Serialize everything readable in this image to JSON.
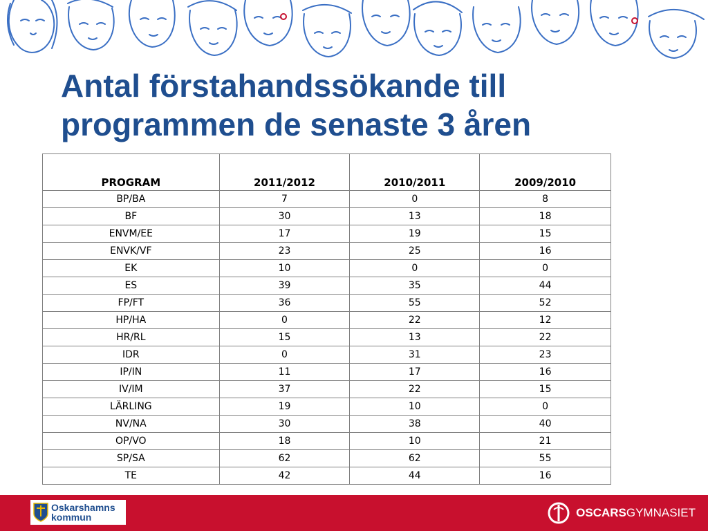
{
  "slide": {
    "title_line1": "Antal förstahandssökande till",
    "title_line2": "programmen de senaste 3 åren"
  },
  "table": {
    "headers": [
      "PROGRAM",
      "2011/2012",
      "2010/2011",
      "2009/2010"
    ],
    "rows": [
      [
        "BP/BA",
        "7",
        "0",
        "8"
      ],
      [
        "BF",
        "30",
        "13",
        "18"
      ],
      [
        "ENVM/EE",
        "17",
        "19",
        "15"
      ],
      [
        "ENVK/VF",
        "23",
        "25",
        "16"
      ],
      [
        "EK",
        "10",
        "0",
        "0"
      ],
      [
        "ES",
        "39",
        "35",
        "44"
      ],
      [
        "FP/FT",
        "36",
        "55",
        "52"
      ],
      [
        "HP/HA",
        "0",
        "22",
        "12"
      ],
      [
        "HR/RL",
        "15",
        "13",
        "22"
      ],
      [
        "IDR",
        "0",
        "31",
        "23"
      ],
      [
        "IP/IN",
        "11",
        "17",
        "16"
      ],
      [
        "IV/IM",
        "37",
        "22",
        "15"
      ],
      [
        "LÄRLING",
        "19",
        "10",
        "0"
      ],
      [
        "NV/NA",
        "30",
        "38",
        "40"
      ],
      [
        "OP/VO",
        "18",
        "10",
        "21"
      ],
      [
        "SP/SA",
        "62",
        "62",
        "55"
      ],
      [
        "TE",
        "42",
        "44",
        "16"
      ]
    ]
  },
  "footer": {
    "kommun_line1": "Oskarshamns",
    "kommun_line2": "kommun",
    "school_bold": "OSCARS",
    "school_light": "GYMNASIET"
  },
  "colors": {
    "title": "#1f4e8f",
    "footer_bar": "#c8102e",
    "sketch": "#3a6fc4"
  }
}
